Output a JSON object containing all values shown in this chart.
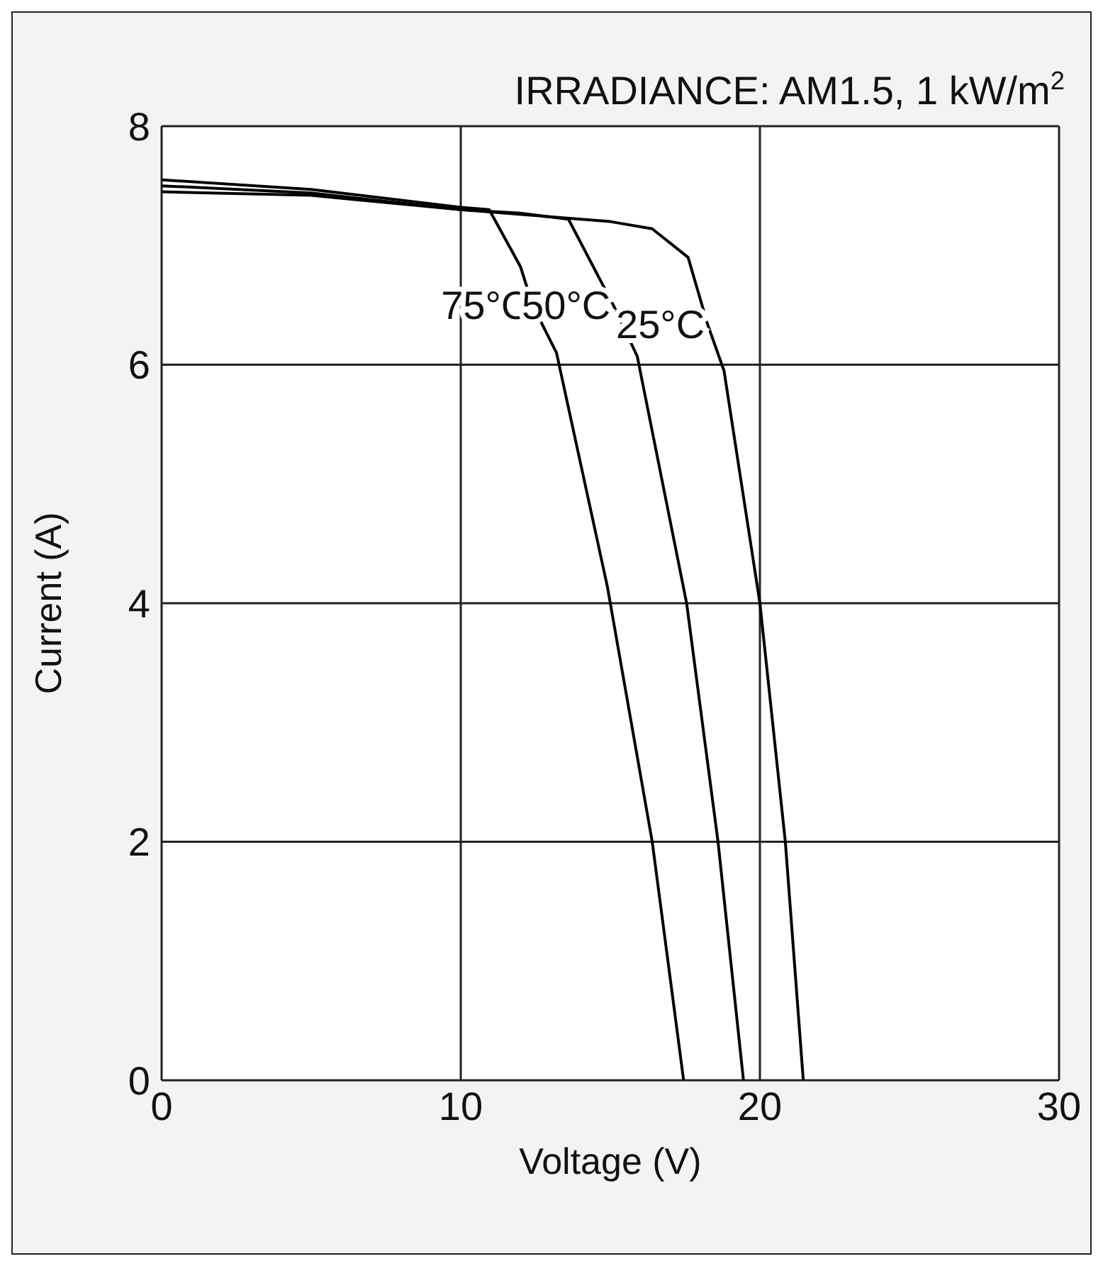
{
  "chart_data": {
    "type": "line",
    "title": "IRRADIANCE: AM1.5, 1 kW/m$^{2}$",
    "xlabel": "Voltage (V)",
    "ylabel": "Current (A)",
    "xlim": [
      0,
      30
    ],
    "xticks": [
      0,
      10,
      20,
      30
    ],
    "ylim": [
      0,
      8
    ],
    "yticks": [
      0,
      2,
      4,
      6,
      8
    ],
    "grid": true,
    "marker": "none",
    "line_style": "solid",
    "series": [
      {
        "name": "75°C",
        "color": "#000000",
        "x": [
          0,
          5,
          10,
          10.95,
          12,
          12.4,
          13.2,
          14.9,
          16.4,
          17.45
        ],
        "values": [
          7.55,
          7.47,
          7.32,
          7.3,
          6.82,
          6.5,
          6.1,
          4.14,
          2,
          0
        ]
      },
      {
        "name": "50°C",
        "color": "#000000",
        "x": [
          0,
          5,
          10,
          12,
          13.6,
          15.1,
          15.9,
          17.55,
          18.6,
          19.45
        ],
        "values": [
          7.5,
          7.44,
          7.3,
          7.27,
          7.22,
          6.5,
          6.07,
          4,
          2,
          0
        ]
      },
      {
        "name": "25°C",
        "color": "#000000",
        "x": [
          0,
          5,
          10,
          15,
          16.4,
          17.6,
          18.25,
          18.8,
          20,
          20.85,
          21.45
        ],
        "values": [
          7.45,
          7.42,
          7.3,
          7.2,
          7.14,
          6.9,
          6.34,
          5.95,
          4,
          2,
          0
        ]
      }
    ]
  }
}
